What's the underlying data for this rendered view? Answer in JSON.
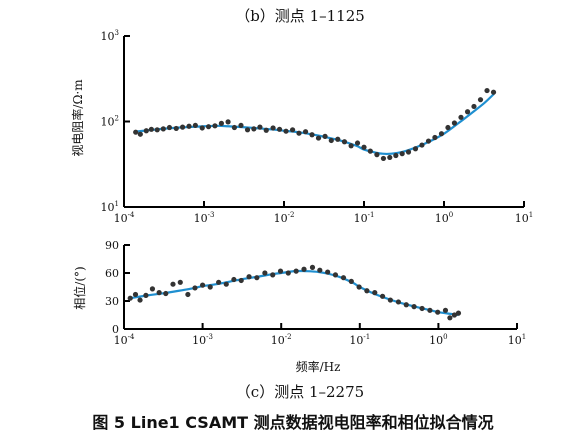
{
  "figure": {
    "panel_b_title": "（b）测点 1–1125",
    "panel_c_title": "（c）测点 1–2275",
    "caption": "图 5   Line1 CSAMT 测点数据视电阻率和相位拟合情况"
  },
  "colors": {
    "fit_curve": "#1f8fd0",
    "observed_points": "#333333",
    "axis": "#000000"
  },
  "chart_data": [
    {
      "type": "scatter",
      "panel": "b",
      "title": "（b）测点 1–1125",
      "xlabel": "",
      "ylabel": "视电阻率/Ω·m",
      "x_scale": "log",
      "y_scale": "log",
      "xlim": [
        0.0001,
        10
      ],
      "ylim": [
        10,
        1000
      ],
      "x_tick_values": [
        0.0001,
        0.001,
        0.01,
        0.1,
        1,
        10
      ],
      "x_tick_labels": [
        [
          "10",
          "-4"
        ],
        [
          "10",
          "-3"
        ],
        [
          "10",
          "-2"
        ],
        [
          "10",
          "-1"
        ],
        [
          "10",
          "0"
        ],
        [
          "10",
          "1"
        ]
      ],
      "y_tick_values": [
        1000,
        100,
        10
      ],
      "y_tick_labels": [
        [
          "10",
          "3"
        ],
        [
          "10",
          "2"
        ],
        [
          "10",
          "1"
        ]
      ],
      "series": [
        {
          "kind": "points",
          "x": [
            0.00014,
            0.00016,
            0.00019,
            0.00022,
            0.00026,
            0.00031,
            0.00037,
            0.00045,
            0.00054,
            0.00065,
            0.00078,
            0.00095,
            0.00114,
            0.00137,
            0.00165,
            0.002,
            0.0024,
            0.0029,
            0.0035,
            0.0042,
            0.005,
            0.006,
            0.0073,
            0.0088,
            0.0106,
            0.0128,
            0.0154,
            0.0186,
            0.0224,
            0.027,
            0.0326,
            0.039,
            0.047,
            0.057,
            0.069,
            0.083,
            0.1,
            0.12,
            0.145,
            0.175,
            0.21,
            0.25,
            0.3,
            0.36,
            0.44,
            0.53,
            0.64,
            0.77,
            0.93,
            1.12,
            1.35,
            1.63,
            1.97,
            2.37,
            2.86,
            3.45,
            4.16
          ],
          "y": [
            75,
            71,
            78,
            81,
            80,
            82,
            85,
            83,
            86,
            88,
            90,
            84,
            87,
            89,
            95,
            99,
            85,
            90,
            80,
            82,
            86,
            79,
            84,
            81,
            77,
            80,
            73,
            76,
            70,
            64,
            67,
            60,
            62,
            58,
            52,
            56,
            50,
            45,
            41,
            37,
            38,
            40,
            42,
            44,
            48,
            53,
            59,
            65,
            72,
            85,
            96,
            112,
            130,
            150,
            180,
            230,
            220
          ]
        },
        {
          "kind": "fit",
          "x": [
            0.00014,
            0.0002,
            0.0003,
            0.0005,
            0.0008,
            0.001,
            0.0015,
            0.002,
            0.003,
            0.005,
            0.008,
            0.01,
            0.015,
            0.02,
            0.03,
            0.05,
            0.08,
            0.1,
            0.13,
            0.17,
            0.22,
            0.3,
            0.45,
            0.7,
            1,
            1.5,
            2.2,
            3.2,
            4.2
          ],
          "y": [
            76,
            79,
            82,
            85,
            87,
            88,
            89,
            88,
            86,
            83,
            80,
            78,
            75,
            72,
            67,
            60,
            52,
            47,
            44,
            42,
            42,
            44,
            50,
            60,
            72,
            95,
            125,
            165,
            210
          ]
        }
      ]
    },
    {
      "type": "scatter",
      "panel": "c",
      "title": "（c）测点 1–2275",
      "xlabel": "频率/Hz",
      "ylabel": "相位/(°)",
      "x_scale": "log",
      "y_scale": "linear",
      "xlim": [
        0.0001,
        10
      ],
      "ylim": [
        0,
        90
      ],
      "x_tick_values": [
        0.0001,
        0.001,
        0.01,
        0.1,
        1,
        10
      ],
      "x_tick_labels": [
        [
          "10",
          "-4"
        ],
        [
          "10",
          "-3"
        ],
        [
          "10",
          "-2"
        ],
        [
          "10",
          "-1"
        ],
        [
          "10",
          "0"
        ],
        [
          "10",
          "1"
        ]
      ],
      "y_tick_values": [
        90,
        60,
        30,
        0
      ],
      "y_tick_labels": [
        "90",
        "60",
        "30",
        "0"
      ],
      "series": [
        {
          "kind": "points",
          "x": [
            0.00012,
            0.00014,
            0.00016,
            0.00019,
            0.00023,
            0.00028,
            0.00034,
            0.00042,
            0.00052,
            0.00065,
            0.0008,
            0.001,
            0.00125,
            0.0016,
            0.002,
            0.0025,
            0.0031,
            0.0039,
            0.0049,
            0.0062,
            0.0078,
            0.0098,
            0.0123,
            0.0155,
            0.0195,
            0.025,
            0.031,
            0.039,
            0.049,
            0.062,
            0.078,
            0.098,
            0.123,
            0.155,
            0.195,
            0.245,
            0.31,
            0.39,
            0.49,
            0.62,
            0.78,
            0.98,
            1.23,
            1.4,
            1.6,
            1.8
          ],
          "y": [
            33,
            37,
            31,
            36,
            43,
            39,
            38,
            48,
            50,
            37,
            44,
            47,
            45,
            50,
            48,
            53,
            52,
            56,
            55,
            60,
            58,
            62,
            60,
            62,
            64,
            66,
            63,
            61,
            58,
            55,
            51,
            45,
            41,
            39,
            35,
            31,
            29,
            26,
            24,
            22,
            20,
            18,
            20,
            12,
            15,
            17
          ]
        },
        {
          "kind": "fit",
          "x": [
            0.00012,
            0.0002,
            0.0003,
            0.0005,
            0.0008,
            0.001,
            0.0015,
            0.002,
            0.003,
            0.005,
            0.008,
            0.01,
            0.015,
            0.02,
            0.03,
            0.05,
            0.08,
            0.1,
            0.15,
            0.2,
            0.3,
            0.5,
            0.8,
            1,
            1.5,
            1.8
          ],
          "y": [
            33,
            36,
            38,
            41,
            44,
            46,
            48,
            50,
            53,
            56,
            59,
            60,
            62,
            62,
            61,
            57,
            50,
            45,
            38,
            34,
            29,
            24,
            20,
            18,
            16,
            15
          ]
        }
      ]
    }
  ]
}
